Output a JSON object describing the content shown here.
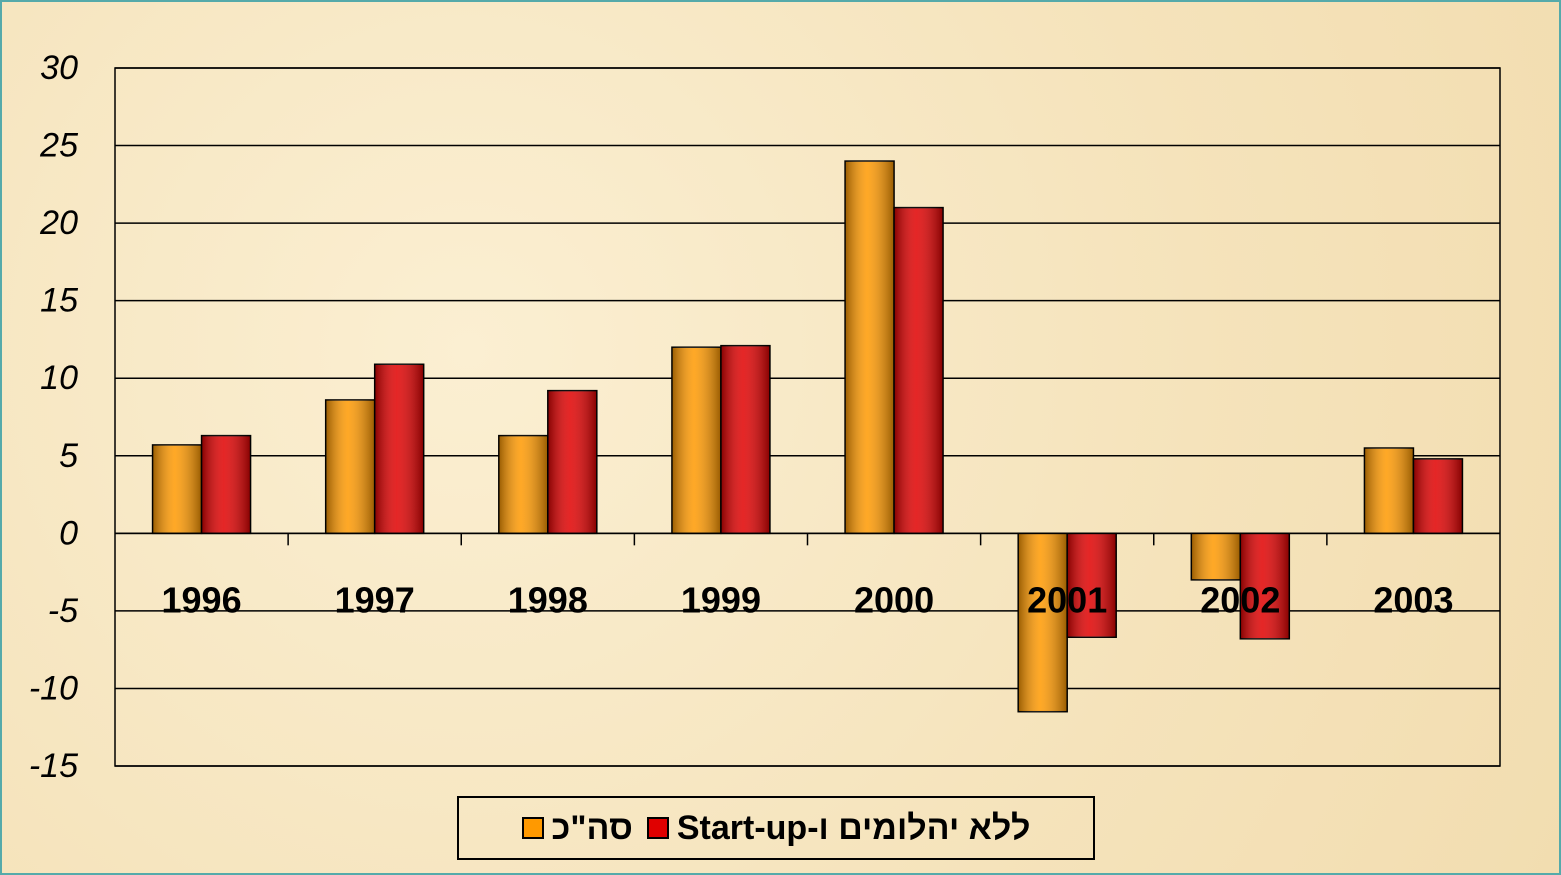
{
  "chart_data": {
    "type": "bar",
    "categories": [
      "1996",
      "1997",
      "1998",
      "1999",
      "2000",
      "2001",
      "2002",
      "2003"
    ],
    "series": [
      {
        "name": "סה\"כ",
        "color": "#ff9900",
        "values": [
          5.7,
          8.6,
          6.3,
          12.0,
          24.0,
          -11.5,
          -3.0,
          5.5
        ]
      },
      {
        "name": "ללא יהלומים ו-Start-up",
        "color": "#e00000",
        "values": [
          6.3,
          10.9,
          9.2,
          12.1,
          21.0,
          -6.7,
          -6.8,
          4.8
        ]
      }
    ],
    "ylim": [
      -15,
      30
    ],
    "yticks": [
      -15,
      -10,
      -5,
      0,
      5,
      10,
      15,
      20,
      25,
      30
    ],
    "grid": true,
    "legend": "bottom"
  }
}
